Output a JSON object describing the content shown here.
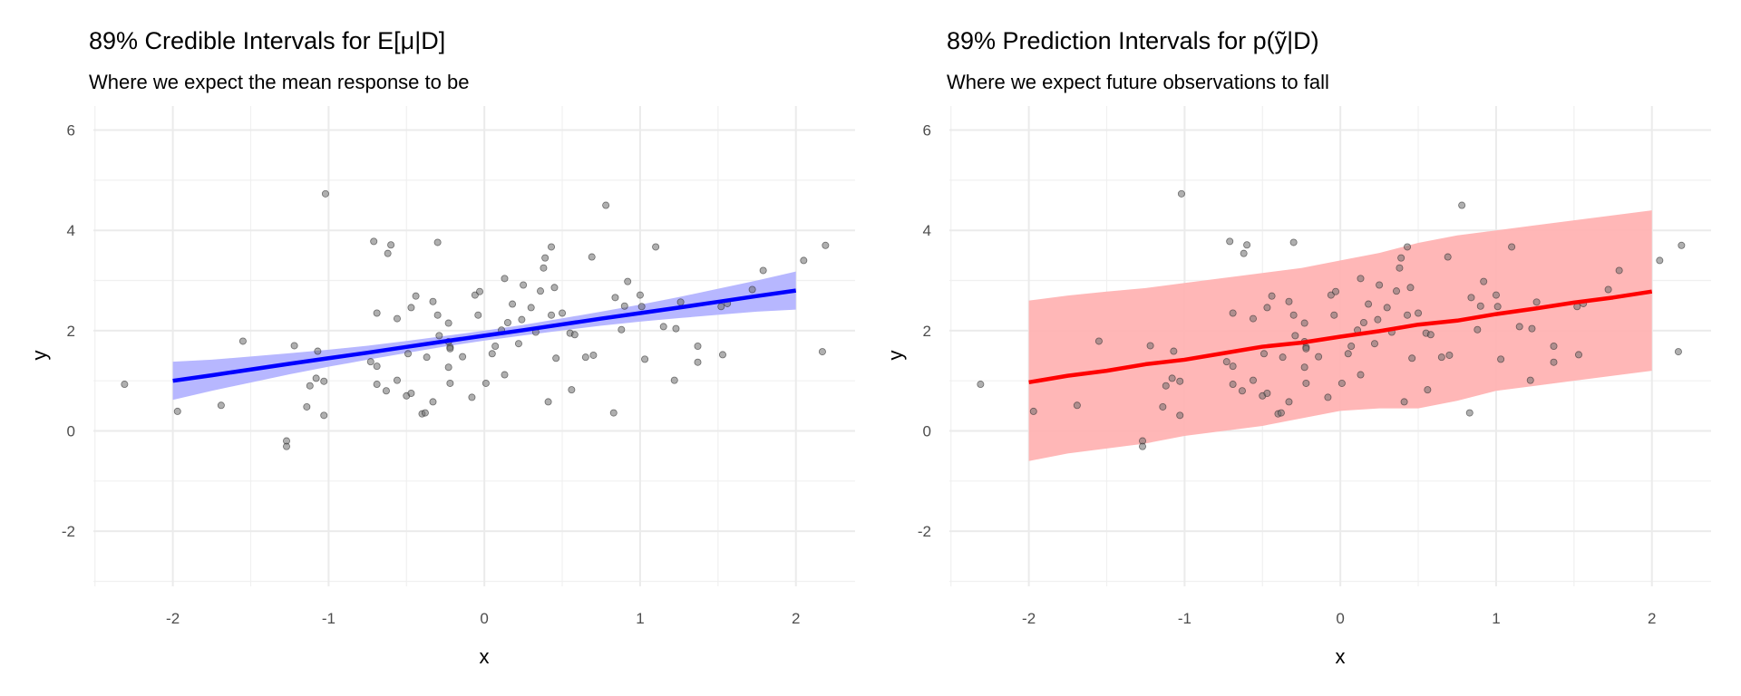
{
  "chart_data": [
    {
      "type": "scatter",
      "title": "89% Credible Intervals for E[μ|D]",
      "subtitle": "Where we expect the mean response to be",
      "xlabel": "x",
      "ylabel": "y",
      "xlim": [
        -2.51,
        2.38
      ],
      "ylim": [
        -3.1,
        6.48
      ],
      "xticks": [
        -2,
        -1,
        0,
        1,
        2
      ],
      "yticks": [
        -2,
        0,
        2,
        4,
        6
      ],
      "band_color": "#b3b3ff",
      "line_color": "#0000ff",
      "band_kind": "ci"
    },
    {
      "type": "scatter",
      "title": "89% Prediction Intervals for p(ỹ|D)",
      "subtitle": "Where we expect future observations to fall",
      "xlabel": "x",
      "ylabel": "y",
      "xlim": [
        -2.51,
        2.38
      ],
      "ylim": [
        -3.1,
        6.48
      ],
      "xticks": [
        -2,
        -1,
        0,
        1,
        2
      ],
      "yticks": [
        -2,
        0,
        2,
        4,
        6
      ],
      "band_color": "#ffb3b3",
      "line_color": "#ff0000",
      "band_kind": "pi"
    }
  ],
  "grid_x": [
    -2,
    -1.75,
    -1.5,
    -1.25,
    -1,
    -0.75,
    -0.5,
    -0.25,
    0,
    0.25,
    0.5,
    0.75,
    1,
    1.25,
    1.5,
    1.75,
    2
  ],
  "ci": {
    "mean": [
      1.0,
      1.11,
      1.225,
      1.34,
      1.45,
      1.56,
      1.675,
      1.79,
      1.9,
      2.01,
      2.125,
      2.24,
      2.35,
      2.46,
      2.575,
      2.69,
      2.8
    ],
    "lower": [
      0.62,
      0.8,
      0.965,
      1.13,
      1.28,
      1.42,
      1.555,
      1.685,
      1.8,
      1.905,
      2.005,
      2.1,
      2.18,
      2.25,
      2.315,
      2.38,
      2.42
    ],
    "upper": [
      1.38,
      1.42,
      1.485,
      1.55,
      1.62,
      1.7,
      1.795,
      1.895,
      2.0,
      2.115,
      2.245,
      2.38,
      2.52,
      2.67,
      2.835,
      3.0,
      3.18
    ]
  },
  "pi": {
    "mean": [
      0.97,
      1.1,
      1.2,
      1.33,
      1.42,
      1.55,
      1.68,
      1.76,
      1.88,
      1.99,
      2.12,
      2.2,
      2.33,
      2.44,
      2.56,
      2.66,
      2.78
    ],
    "lower": [
      -0.6,
      -0.45,
      -0.35,
      -0.25,
      -0.1,
      0.0,
      0.1,
      0.25,
      0.4,
      0.45,
      0.45,
      0.6,
      0.8,
      0.9,
      1.0,
      1.1,
      1.2
    ],
    "upper": [
      2.6,
      2.7,
      2.78,
      2.85,
      2.95,
      3.05,
      3.15,
      3.25,
      3.4,
      3.55,
      3.75,
      3.9,
      4.0,
      4.1,
      4.2,
      4.3,
      4.4
    ]
  },
  "points": [
    [
      -2.31,
      0.93
    ],
    [
      -1.97,
      0.39
    ],
    [
      -1.69,
      0.51
    ],
    [
      -1.55,
      1.79
    ],
    [
      -1.27,
      -0.2
    ],
    [
      -1.27,
      -0.31
    ],
    [
      -1.22,
      1.7
    ],
    [
      -1.14,
      0.48
    ],
    [
      -1.12,
      0.9
    ],
    [
      -1.07,
      1.59
    ],
    [
      -1.08,
      1.05
    ],
    [
      -1.03,
      0.99
    ],
    [
      -1.03,
      0.31
    ],
    [
      -1.02,
      4.73
    ],
    [
      -0.73,
      1.38
    ],
    [
      -0.71,
      3.78
    ],
    [
      -0.69,
      2.35
    ],
    [
      -0.69,
      1.29
    ],
    [
      -0.69,
      0.93
    ],
    [
      -0.62,
      3.54
    ],
    [
      -0.6,
      3.71
    ],
    [
      -0.63,
      0.8
    ],
    [
      -0.56,
      1.01
    ],
    [
      -0.56,
      2.24
    ],
    [
      -0.5,
      0.7
    ],
    [
      -0.49,
      1.54
    ],
    [
      -0.47,
      0.75
    ],
    [
      -0.47,
      2.46
    ],
    [
      -0.44,
      2.69
    ],
    [
      -0.4,
      0.34
    ],
    [
      -0.38,
      0.36
    ],
    [
      -0.37,
      1.47
    ],
    [
      -0.33,
      0.58
    ],
    [
      -0.33,
      2.58
    ],
    [
      -0.3,
      3.76
    ],
    [
      -0.3,
      2.31
    ],
    [
      -0.29,
      1.9
    ],
    [
      -0.23,
      1.27
    ],
    [
      -0.23,
      1.78
    ],
    [
      -0.23,
      2.15
    ],
    [
      -0.22,
      1.67
    ],
    [
      -0.22,
      1.64
    ],
    [
      -0.22,
      0.95
    ],
    [
      -0.14,
      1.48
    ],
    [
      -0.08,
      0.67
    ],
    [
      -0.06,
      2.71
    ],
    [
      -0.04,
      2.31
    ],
    [
      -0.03,
      2.78
    ],
    [
      0.01,
      0.95
    ],
    [
      0.05,
      1.54
    ],
    [
      0.07,
      1.69
    ],
    [
      0.11,
      2.01
    ],
    [
      0.13,
      3.04
    ],
    [
      0.13,
      1.12
    ],
    [
      0.15,
      2.16
    ],
    [
      0.18,
      2.53
    ],
    [
      0.22,
      1.74
    ],
    [
      0.24,
      2.22
    ],
    [
      0.25,
      2.91
    ],
    [
      0.3,
      2.46
    ],
    [
      0.33,
      1.97
    ],
    [
      0.36,
      2.79
    ],
    [
      0.38,
      3.25
    ],
    [
      0.39,
      3.45
    ],
    [
      0.41,
      0.58
    ],
    [
      0.43,
      3.67
    ],
    [
      0.43,
      2.31
    ],
    [
      0.45,
      2.86
    ],
    [
      0.46,
      1.45
    ],
    [
      0.5,
      2.35
    ],
    [
      0.55,
      1.95
    ],
    [
      0.56,
      0.82
    ],
    [
      0.58,
      1.92
    ],
    [
      0.65,
      1.47
    ],
    [
      0.69,
      3.47
    ],
    [
      0.7,
      1.51
    ],
    [
      0.78,
      4.5
    ],
    [
      0.83,
      0.36
    ],
    [
      0.84,
      2.66
    ],
    [
      0.88,
      2.02
    ],
    [
      0.9,
      2.49
    ],
    [
      0.92,
      2.98
    ],
    [
      1.0,
      2.71
    ],
    [
      1.01,
      2.48
    ],
    [
      1.03,
      1.43
    ],
    [
      1.1,
      3.67
    ],
    [
      1.15,
      2.08
    ],
    [
      1.22,
      1.01
    ],
    [
      1.23,
      2.04
    ],
    [
      1.26,
      2.57
    ],
    [
      1.37,
      1.37
    ],
    [
      1.37,
      1.69
    ],
    [
      1.52,
      2.48
    ],
    [
      1.53,
      1.52
    ],
    [
      1.56,
      2.54
    ],
    [
      1.72,
      2.82
    ],
    [
      1.79,
      3.2
    ],
    [
      2.05,
      3.4
    ],
    [
      2.17,
      1.58
    ],
    [
      2.19,
      3.7
    ]
  ]
}
